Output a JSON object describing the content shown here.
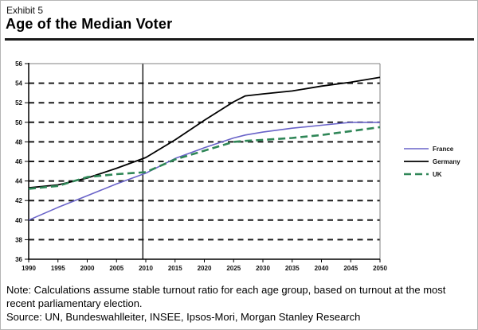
{
  "page": {
    "exhibit_label": "Exhibit 5",
    "title": "Age of the Median Voter",
    "note": "Note: Calculations assume stable turnout ratio for each age group, based on turnout at the most recent parliamentary election.",
    "source": "Source: UN, Bundeswahlleiter, INSEE, Ipsos-Mori, Morgan Stanley Research"
  },
  "colors": {
    "france": "#6963c8",
    "germany": "#000000",
    "uk": "#2f8657",
    "grid": "#1a1a1a",
    "axis": "#000000",
    "frame": "#808080",
    "marker": "#000000"
  },
  "chart_data": {
    "type": "line",
    "title": "Age of the Median Voter",
    "xlabel": "",
    "ylabel": "",
    "xlim": [
      1990,
      2050
    ],
    "ylim": [
      36,
      56
    ],
    "x_ticks": [
      1990,
      1995,
      2000,
      2005,
      2010,
      2015,
      2020,
      2025,
      2030,
      2035,
      2040,
      2045,
      2050
    ],
    "y_ticks": [
      36,
      38,
      40,
      42,
      44,
      46,
      48,
      50,
      52,
      54,
      56
    ],
    "grid": "horizontal-dashed",
    "vertical_marker_year": 2009.5,
    "legend_position": "right",
    "x": [
      1990,
      1995,
      2000,
      2005,
      2010,
      2015,
      2020,
      2025,
      2027,
      2030,
      2035,
      2040,
      2045,
      2050
    ],
    "series": [
      {
        "name": "France",
        "color": "#6963c8",
        "style": "solid",
        "values": [
          40.0,
          41.3,
          42.5,
          43.7,
          44.8,
          46.3,
          47.4,
          48.4,
          48.7,
          49.0,
          49.4,
          49.7,
          50.0,
          50.0
        ]
      },
      {
        "name": "Germany",
        "color": "#000000",
        "style": "solid",
        "values": [
          43.3,
          43.6,
          44.3,
          45.3,
          46.4,
          48.2,
          50.2,
          52.1,
          52.7,
          52.9,
          53.2,
          53.7,
          54.1,
          54.6
        ]
      },
      {
        "name": "UK",
        "color": "#2f8657",
        "style": "dashed",
        "values": [
          43.2,
          43.5,
          44.4,
          44.7,
          44.9,
          46.2,
          47.1,
          48.0,
          48.1,
          48.2,
          48.4,
          48.7,
          49.1,
          49.5
        ]
      }
    ]
  }
}
